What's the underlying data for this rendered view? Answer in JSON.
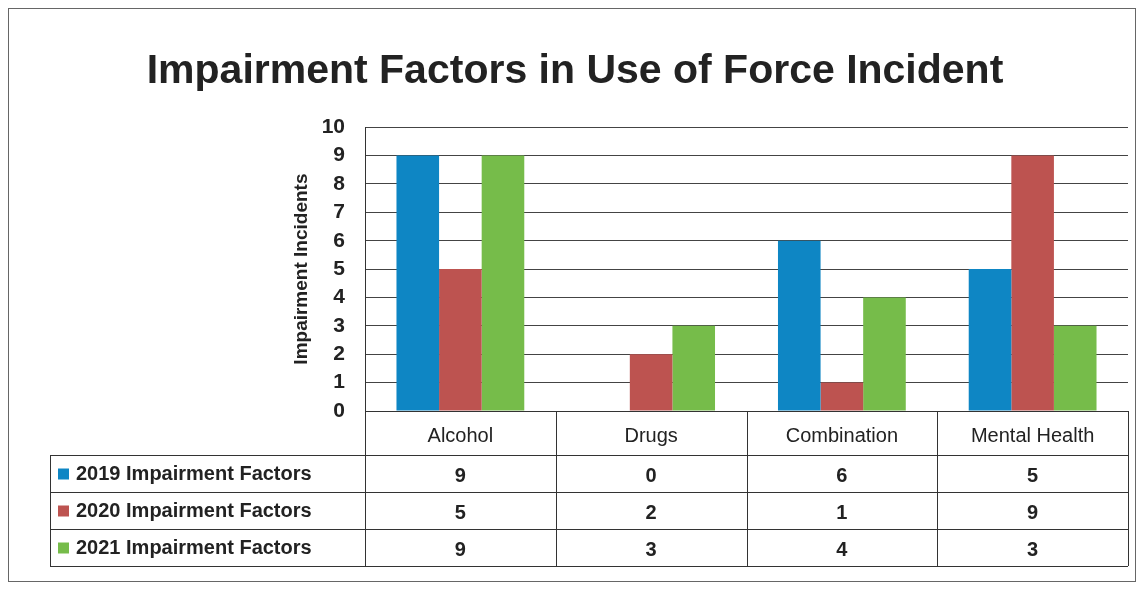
{
  "chart_data": {
    "type": "bar",
    "title": "Impairment Factors in Use of Force Incident",
    "ylabel": "Impairment Incidents",
    "categories": [
      "Alcohol",
      "Drugs",
      "Combination",
      "Mental Health"
    ],
    "series": [
      {
        "name": "2019 Impairment Factors",
        "color": "#0e86c4",
        "values": [
          9,
          0,
          6,
          5
        ]
      },
      {
        "name": "2020 Impairment Factors",
        "color": "#bd5350",
        "values": [
          5,
          2,
          1,
          9
        ]
      },
      {
        "name": "2021 Impairment Factors",
        "color": "#76bc4a",
        "values": [
          9,
          3,
          4,
          3
        ]
      }
    ],
    "ylim": [
      0,
      10
    ],
    "yticks": [
      0,
      1,
      2,
      3,
      4,
      5,
      6,
      7,
      8,
      9,
      10
    ],
    "grid": "y",
    "legend": "bottom",
    "data_labels": true
  }
}
